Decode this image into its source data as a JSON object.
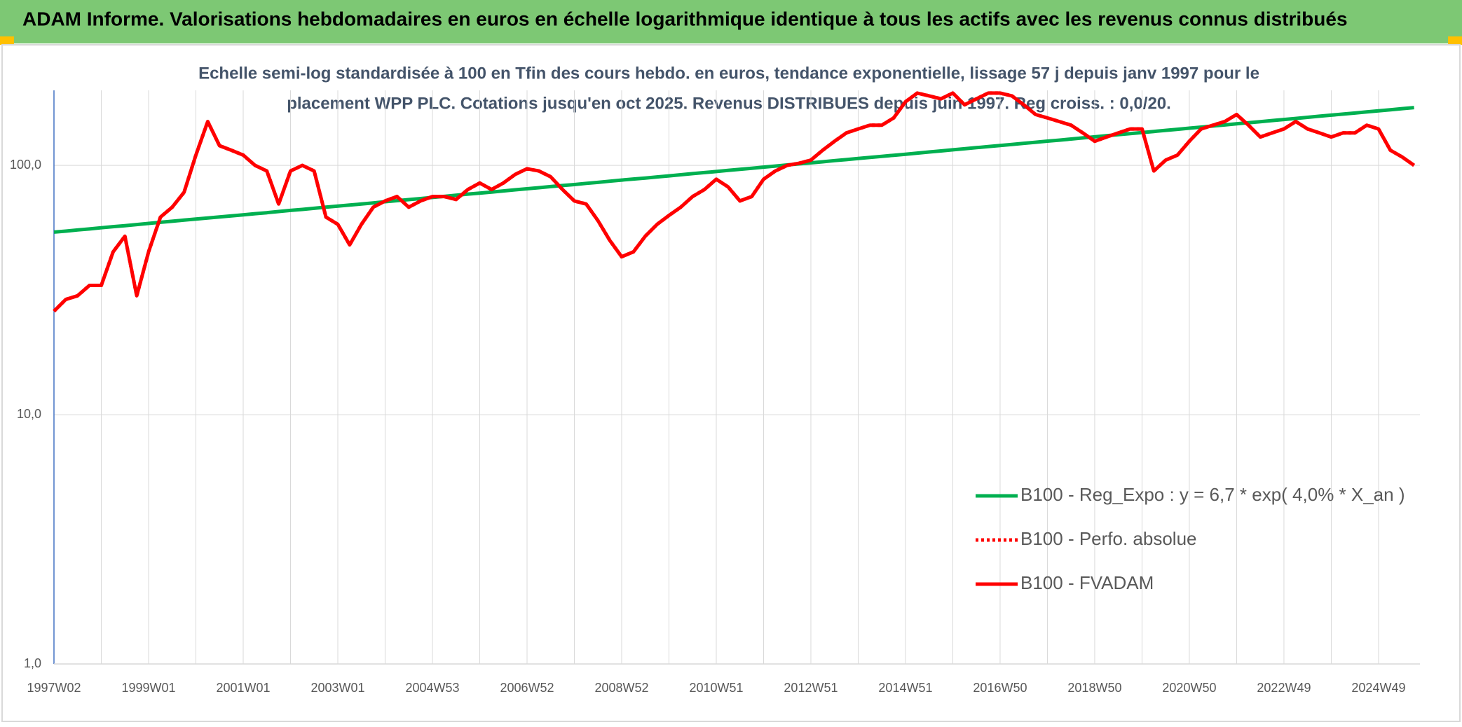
{
  "chart_data": {
    "type": "line",
    "title": "ADAM Informe. Valorisations hebdomadaires en euros en échelle logarithmique identique à tous les actifs avec les revenus connus distribués",
    "subtitle": [
      "Echelle semi-log standardisée à 100 en Tfin des cours hebdo. en euros, tendance exponentielle, lissage 57 j depuis janv 1997 pour le",
      "placement WPP PLC. Cotations jusqu'en oct 2025. Revenus DISTRIBUES depuis juin 1997. Reg croiss. : 0,0/20."
    ],
    "log_scale": true,
    "grid": true,
    "legend": "lower right",
    "ylim": [
      1,
      200
    ],
    "yticks": [
      {
        "value": 1,
        "label": "1,0"
      },
      {
        "value": 10,
        "label": "10,0"
      },
      {
        "value": 100,
        "label": "100,0"
      }
    ],
    "categories": [
      "1997W02",
      null,
      null,
      null,
      null,
      null,
      null,
      null,
      "1999W01",
      null,
      null,
      null,
      null,
      null,
      null,
      null,
      "2001W01",
      null,
      null,
      null,
      null,
      null,
      null,
      null,
      "2003W01",
      null,
      null,
      null,
      null,
      null,
      null,
      null,
      "2004W53",
      null,
      null,
      null,
      null,
      null,
      null,
      null,
      "2006W52",
      null,
      null,
      null,
      null,
      null,
      null,
      null,
      "2008W52",
      null,
      null,
      null,
      null,
      null,
      null,
      null,
      "2010W51",
      null,
      null,
      null,
      null,
      null,
      null,
      null,
      "2012W51",
      null,
      null,
      null,
      null,
      null,
      null,
      null,
      "2014W51",
      null,
      null,
      null,
      null,
      null,
      null,
      null,
      "2016W50",
      null,
      null,
      null,
      null,
      null,
      null,
      null,
      "2018W50",
      null,
      null,
      null,
      null,
      null,
      null,
      null,
      "2020W50",
      null,
      null,
      null,
      null,
      null,
      null,
      null,
      "2022W49",
      null,
      null,
      null,
      null,
      null,
      null,
      null,
      "2024W49",
      null,
      null,
      null
    ],
    "series": [
      {
        "name": "B100 - Reg_Expo : y = 6,7 * exp( 4,0% *  X_an )",
        "color": "#00b050",
        "style": "solid",
        "values": [
          54.0,
          54.5,
          55.1,
          55.6,
          56.2,
          56.8,
          57.3,
          57.9,
          58.5,
          59.1,
          59.7,
          60.3,
          60.9,
          61.5,
          62.1,
          62.7,
          63.3,
          64.0,
          64.6,
          65.3,
          66.0,
          66.6,
          67.3,
          68.0,
          68.7,
          69.3,
          70.0,
          70.7,
          71.5,
          72.2,
          72.9,
          73.6,
          74.4,
          75.1,
          75.9,
          76.7,
          77.4,
          78.2,
          79.0,
          79.8,
          80.6,
          81.4,
          82.2,
          83.0,
          83.8,
          84.7,
          85.5,
          86.4,
          87.3,
          88.2,
          89.0,
          89.9,
          90.8,
          91.7,
          92.7,
          93.6,
          94.5,
          95.5,
          96.4,
          97.4,
          98.4,
          99.4,
          100.4,
          101.4,
          102.4,
          103.4,
          104.5,
          105.5,
          106.6,
          107.6,
          108.7,
          109.8,
          110.9,
          112.0,
          113.2,
          114.3,
          115.5,
          116.6,
          117.8,
          119.0,
          120.2,
          121.4,
          122.6,
          123.8,
          125.1,
          126.3,
          127.6,
          128.9,
          130.2,
          131.5,
          132.8,
          134.1,
          135.5,
          136.8,
          138.2,
          139.6,
          141.0,
          142.4,
          143.9,
          145.3,
          146.8,
          148.3,
          149.8,
          151.3,
          152.8,
          154.3,
          155.9,
          157.5,
          159.1,
          160.6,
          162.2,
          163.9,
          165.5,
          167.2,
          168.9,
          170.6
        ]
      },
      {
        "name": "B100 - Perfo. absolue",
        "color": "#ff0000",
        "style": "dotted",
        "values": [
          26,
          29,
          30,
          33,
          33,
          45,
          52,
          30,
          45,
          62,
          68,
          78,
          110,
          150,
          120,
          115,
          110,
          100,
          95,
          70,
          95,
          100,
          95,
          62,
          58,
          48,
          58,
          68,
          72,
          75,
          68,
          72,
          75,
          75,
          73,
          80,
          85,
          80,
          85,
          92,
          97,
          95,
          90,
          80,
          72,
          70,
          60,
          50,
          43,
          45,
          52,
          58,
          63,
          68,
          75,
          80,
          88,
          82,
          72,
          75,
          88,
          95,
          100,
          102,
          105,
          115,
          125,
          135,
          140,
          145,
          145,
          155,
          180,
          195,
          190,
          185,
          195,
          175,
          185,
          195,
          195,
          190,
          175,
          160,
          155,
          150,
          145,
          135,
          125,
          130,
          135,
          140,
          140,
          95,
          105,
          110,
          125,
          140,
          145,
          150,
          160,
          145,
          130,
          135,
          140,
          150,
          140,
          135,
          130,
          135,
          135,
          145,
          140,
          115,
          108,
          100
        ]
      },
      {
        "name": "B100 - FVADAM",
        "color": "#ff0000",
        "style": "solid",
        "values": [
          26,
          29,
          30,
          33,
          33,
          45,
          52,
          30,
          45,
          62,
          68,
          78,
          110,
          150,
          120,
          115,
          110,
          100,
          95,
          70,
          95,
          100,
          95,
          62,
          58,
          48,
          58,
          68,
          72,
          75,
          68,
          72,
          75,
          75,
          73,
          80,
          85,
          80,
          85,
          92,
          97,
          95,
          90,
          80,
          72,
          70,
          60,
          50,
          43,
          45,
          52,
          58,
          63,
          68,
          75,
          80,
          88,
          82,
          72,
          75,
          88,
          95,
          100,
          102,
          105,
          115,
          125,
          135,
          140,
          145,
          145,
          155,
          180,
          195,
          190,
          185,
          195,
          175,
          185,
          195,
          195,
          190,
          175,
          160,
          155,
          150,
          145,
          135,
          125,
          130,
          135,
          140,
          140,
          95,
          105,
          110,
          125,
          140,
          145,
          150,
          160,
          145,
          130,
          135,
          140,
          150,
          140,
          135,
          130,
          135,
          135,
          145,
          140,
          115,
          108,
          100
        ]
      }
    ]
  }
}
